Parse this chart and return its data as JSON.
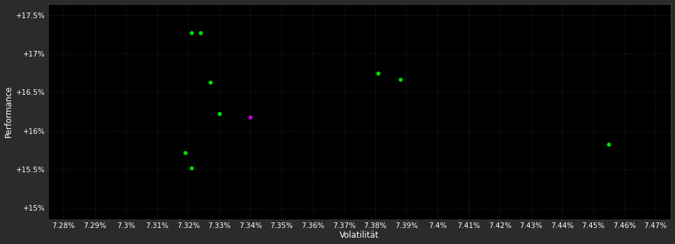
{
  "background_color": "#2b2b2b",
  "plot_bg_color": "#000000",
  "grid_color": "#1a3a1a",
  "text_color": "#ffffff",
  "xlabel": "Volatilität",
  "ylabel": "Performance",
  "xlim": [
    7.275,
    7.475
  ],
  "ylim": [
    14.85,
    17.65
  ],
  "xticks": [
    7.28,
    7.29,
    7.3,
    7.31,
    7.32,
    7.33,
    7.34,
    7.35,
    7.36,
    7.37,
    7.38,
    7.39,
    7.4,
    7.41,
    7.42,
    7.43,
    7.44,
    7.45,
    7.46,
    7.47
  ],
  "ytick_values": [
    15.0,
    15.5,
    16.0,
    16.5,
    17.0,
    17.5
  ],
  "green_points": [
    [
      7.321,
      17.27
    ],
    [
      7.324,
      17.27
    ],
    [
      7.327,
      16.63
    ],
    [
      7.33,
      16.22
    ],
    [
      7.319,
      15.72
    ],
    [
      7.321,
      15.52
    ],
    [
      7.381,
      16.75
    ],
    [
      7.388,
      16.67
    ],
    [
      7.455,
      15.82
    ]
  ],
  "magenta_points": [
    [
      7.34,
      16.18
    ]
  ],
  "point_size": 18,
  "font_size_ticks": 7.5,
  "font_size_labels": 8.5
}
